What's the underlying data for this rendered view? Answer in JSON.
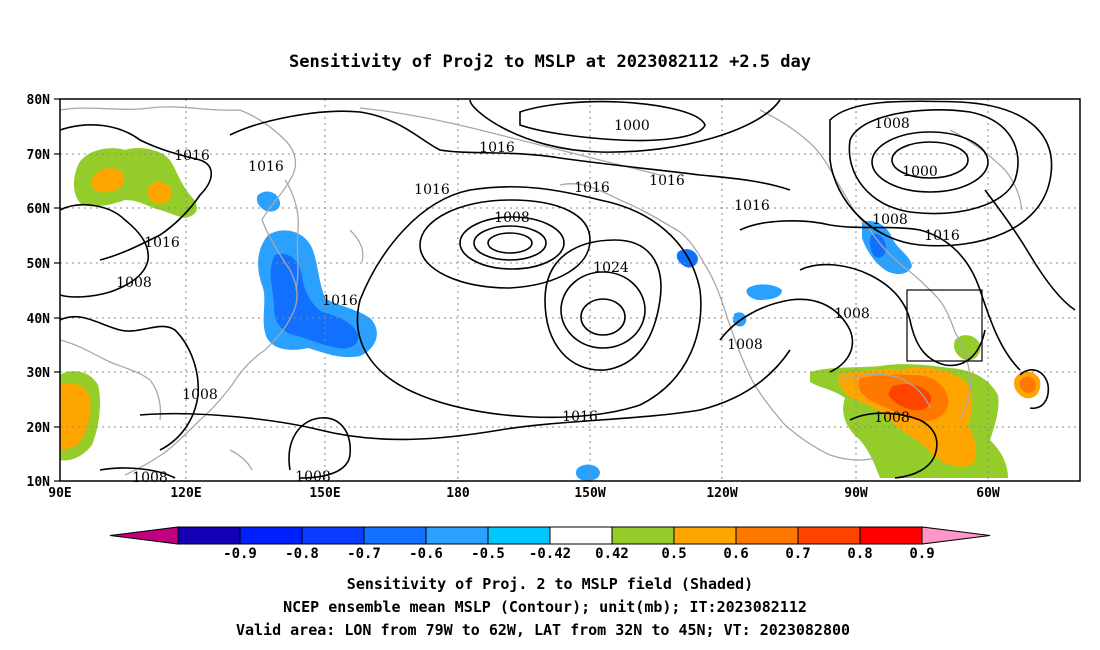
{
  "title": "Sensitivity of Proj2 to MSLP at 2023082112 +2.5 day",
  "map": {
    "lat_labels": [
      "80N",
      "70N",
      "60N",
      "50N",
      "40N",
      "30N",
      "20N",
      "10N"
    ],
    "lon_labels": [
      "90E",
      "120E",
      "150E",
      "180",
      "150W",
      "120W",
      "90W",
      "60W"
    ],
    "valid_box": {
      "lon_from": "79W",
      "lon_to": "62W",
      "lat_from": "32N",
      "lat_to": "45N"
    },
    "contour_labels": [
      "1000",
      "1008",
      "1016",
      "1016",
      "1016",
      "1016",
      "1016",
      "1016",
      "1016",
      "1008",
      "1024",
      "1000",
      "1008",
      "1016",
      "1016",
      "1008",
      "1008",
      "1016",
      "1008",
      "1008",
      "1008",
      "1016"
    ]
  },
  "colorbar": {
    "levels": [
      "-0.9",
      "-0.8",
      "-0.7",
      "-0.6",
      "-0.5",
      "-0.42",
      "0.42",
      "0.5",
      "0.6",
      "0.7",
      "0.8",
      "0.9"
    ],
    "colors": [
      "#c0007f",
      "#1400b4",
      "#0020ff",
      "#0a3cff",
      "#1270ff",
      "#2aa0ff",
      "#00c8ff",
      "#ffffff",
      "#94cc2a",
      "#ffa500",
      "#ff7800",
      "#ff4400",
      "#ff0000",
      "#ff96c8"
    ]
  },
  "caption": {
    "line1": "Sensitivity of Proj. 2 to MSLP field (Shaded)",
    "line2": "NCEP ensemble mean MSLP (Contour); unit(mb); IT:2023082112",
    "line3": "Valid area: LON from 79W to 62W, LAT from 32N to 45N; VT: 2023082800"
  }
}
